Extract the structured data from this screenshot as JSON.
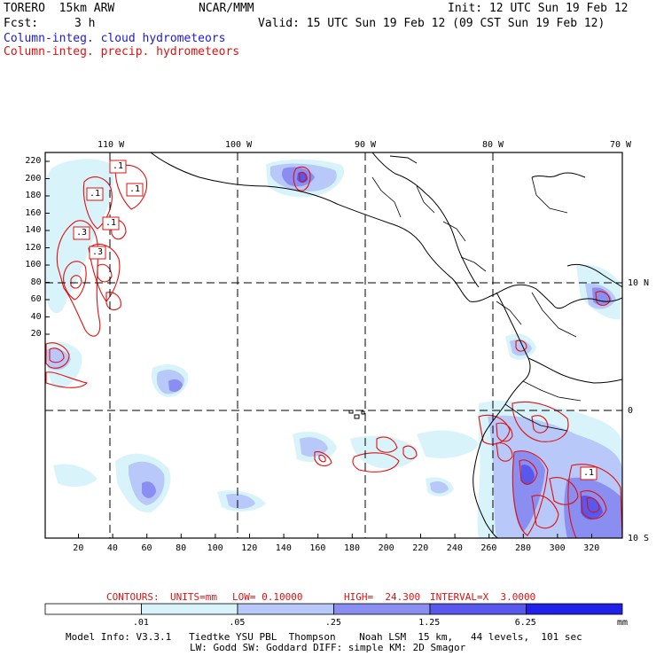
{
  "header": {
    "model": "TORERO  15km ARW",
    "org": "NCAR/MMM",
    "init": "Init: 12 UTC Sun 19 Feb 12",
    "fcst_label": "Fcst:",
    "fcst_value": "3 h",
    "valid": "Valid: 15 UTC Sun 19 Feb 12 (09 CST Sun 19 Feb 12)",
    "field1": "Column-integ. cloud hydrometeors",
    "field2": "Column-integ. precip. hydrometeors"
  },
  "colors": {
    "field1": "#1a1adc",
    "field2": "#e01010",
    "contour": "#e01010",
    "land": "#000000"
  },
  "map": {
    "lon_labels": [
      "110 W",
      "100 W",
      "90 W",
      "80 W",
      "70 W"
    ],
    "lat_labels": [
      "10 N",
      "0",
      "10 S"
    ],
    "y_ticks": [
      "220",
      "200",
      "180",
      "160",
      "140",
      "120",
      "100",
      "80",
      "60",
      "40",
      "20"
    ],
    "x_ticks": [
      "20",
      "40",
      "60",
      "80",
      "100",
      "120",
      "140",
      "160",
      "180",
      "200",
      "220",
      "240",
      "260",
      "280",
      "300",
      "320"
    ],
    "contour_labels": [
      ".1",
      ".1",
      ".1",
      ".1",
      ".3",
      ".3",
      ".1"
    ]
  },
  "contour_info": {
    "title": "CONTOURS:",
    "units": "UNITS=mm",
    "low": "LOW= 0.10000",
    "high": "HIGH=  24.300",
    "interval": "INTERVAL=X  3.0000"
  },
  "legend": {
    "bins": [
      {
        "label": ".01",
        "color": "#ffffff"
      },
      {
        "label": ".05",
        "color": "#d8f4fa"
      },
      {
        "label": ".25",
        "color": "#b8c8f8"
      },
      {
        "label": "1.25",
        "color": "#8a8ef0"
      },
      {
        "label": "6.25",
        "color": "#5858ec"
      },
      {
        "label": "",
        "color": "#2020e8"
      }
    ],
    "unit": "mm"
  },
  "footer": {
    "line1": "Model Info: V3.3.1   Tiedtke YSU PBL  Thompson    Noah LSM  15 km,   44 levels,  101 sec",
    "line2": "LW: Godd SW: Goddard DIFF: simple KM: 2D Smagor"
  }
}
